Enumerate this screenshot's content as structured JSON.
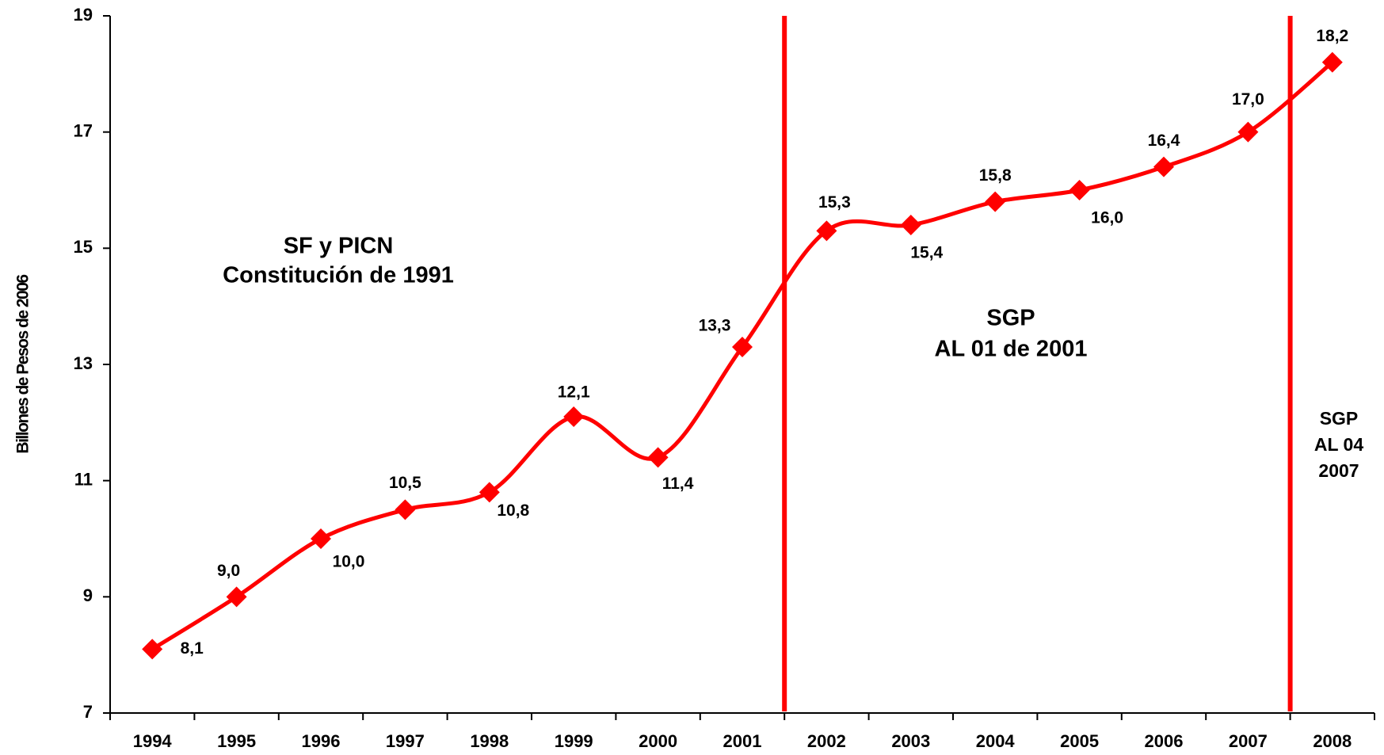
{
  "chart_data": {
    "type": "line",
    "y_label": "Billones de Pesos de 2006",
    "categories": [
      "1994",
      "1995",
      "1996",
      "1997",
      "1998",
      "1999",
      "2000",
      "2001",
      "2002",
      "2003",
      "2004",
      "2005",
      "2006",
      "2007",
      "2008"
    ],
    "series": [
      {
        "color": "#ff0000",
        "values": [
          8.1,
          9.0,
          10.0,
          10.5,
          10.8,
          12.1,
          11.4,
          13.3,
          15.3,
          15.4,
          15.8,
          16.0,
          16.4,
          17.0,
          18.2
        ],
        "value_labels": [
          "8,1",
          "9,0",
          "10,0",
          "10,5",
          "10,8",
          "12,1",
          "11,4",
          "13,3",
          "15,3",
          "15,4",
          "15,8",
          "16,0",
          "16,4",
          "17,0",
          "18,2"
        ]
      }
    ],
    "ylim": [
      7,
      19
    ],
    "yticks": [
      7,
      9,
      11,
      13,
      15,
      17,
      19
    ],
    "annotations": [
      {
        "lines": [
          "SF y PICN",
          "Constitución de 1991"
        ]
      },
      {
        "lines": [
          "SGP",
          "AL 01 de 2001"
        ]
      },
      {
        "lines": [
          "SGP",
          "AL 04",
          "2007"
        ]
      }
    ]
  }
}
